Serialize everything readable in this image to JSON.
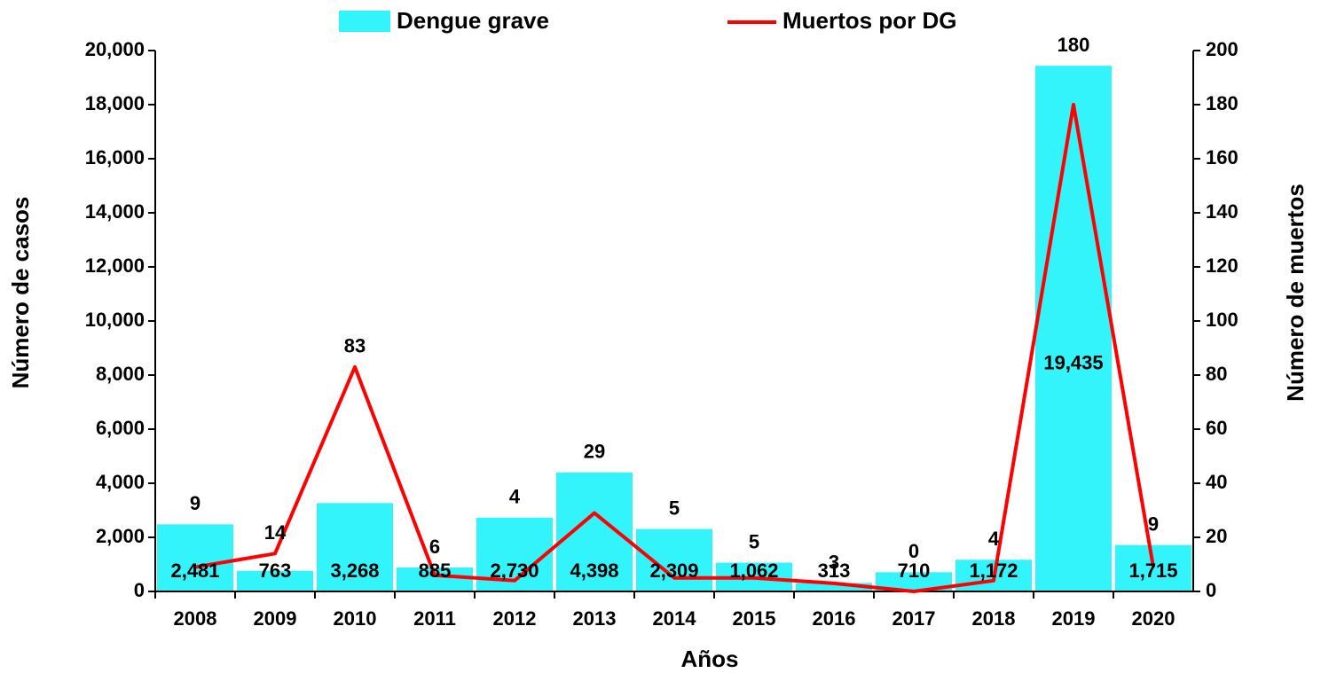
{
  "chart_data": {
    "type": "bar_line",
    "x_label": "Años",
    "y_label": "Número de casos",
    "y2_label": "Número de muertos",
    "categories": [
      "2008",
      "2009",
      "2010",
      "2011",
      "2012",
      "2013",
      "2014",
      "2015",
      "2016",
      "2017",
      "2018",
      "2019",
      "2020"
    ],
    "series": [
      {
        "name": "Dengue grave",
        "type": "bar",
        "color": "#33f3fb",
        "values": [
          2481,
          763,
          3268,
          885,
          2730,
          4398,
          2309,
          1062,
          313,
          710,
          1172,
          19435,
          1715
        ],
        "value_labels": [
          "2,481",
          "763",
          "3,268",
          "885",
          "2,730",
          "4,398",
          "2,309",
          "1,062",
          "313",
          "710",
          "1,172",
          "19,435",
          "1,715"
        ]
      },
      {
        "name": "Muertos por DG",
        "type": "line",
        "axis": "y2",
        "color": "#ff0000",
        "values": [
          9,
          14,
          83,
          6,
          4,
          29,
          5,
          5,
          3,
          0,
          4,
          180,
          9
        ]
      }
    ],
    "ylim": [
      0,
      20000
    ],
    "yticks": [
      0,
      {
        "value": 2000,
        "label": "2,000"
      },
      {
        "value": 4000,
        "label": "4,000"
      },
      {
        "value": 6000,
        "label": "6,000"
      },
      {
        "value": 8000,
        "label": "8,000"
      },
      {
        "value": 10000,
        "label": "10,000"
      },
      {
        "value": 12000,
        "label": "12,000"
      },
      {
        "value": 14000,
        "label": "14,000"
      },
      {
        "value": 16000,
        "label": "16,000"
      },
      {
        "value": 18000,
        "label": "18,000"
      },
      {
        "value": 20000,
        "label": "20,000"
      }
    ],
    "y2lim": [
      0,
      200
    ],
    "y2ticks": [
      0,
      20,
      40,
      60,
      80,
      100,
      120,
      140,
      160,
      180,
      200
    ],
    "legend": "top"
  }
}
